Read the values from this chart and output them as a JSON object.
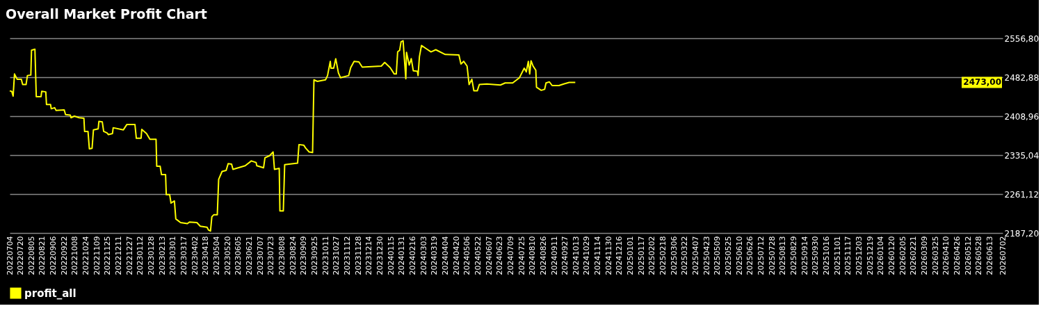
{
  "chart_data": {
    "type": "line",
    "title": "Overall Market Profit Chart",
    "x": [
      "2022-07-04",
      "2022-07-07",
      "2022-07-09",
      "2022-07-11",
      "2022-07-15",
      "2022-07-21",
      "2022-07-23",
      "2022-07-28",
      "2022-07-30",
      "2022-08-04",
      "2022-08-05",
      "2022-08-10",
      "2022-08-12",
      "2022-08-19",
      "2022-08-20",
      "2022-08-26",
      "2022-08-27",
      "2022-09-02",
      "2022-09-03",
      "2022-09-08",
      "2022-09-10",
      "2022-09-22",
      "2022-09-24",
      "2022-10-01",
      "2022-10-02",
      "2022-10-07",
      "2022-10-14",
      "2022-10-21",
      "2022-10-22",
      "2022-10-27",
      "2022-10-29",
      "2022-11-02",
      "2022-11-04",
      "2022-11-11",
      "2022-11-12",
      "2022-11-17",
      "2022-11-19",
      "2022-11-24",
      "2022-11-26",
      "2022-12-02",
      "2022-12-03",
      "2022-12-18",
      "2022-12-23",
      "2023-01-04",
      "2023-01-06",
      "2023-01-13",
      "2023-01-14",
      "2023-01-21",
      "2023-01-26",
      "2023-02-04",
      "2023-02-05",
      "2023-02-10",
      "2023-02-12",
      "2023-02-18",
      "2023-02-19",
      "2023-02-24",
      "2023-02-26",
      "2023-03-03",
      "2023-03-05",
      "2023-03-12",
      "2023-03-22",
      "2023-03-25",
      "2023-04-05",
      "2023-04-10",
      "2023-04-20",
      "2023-04-22",
      "2023-04-25",
      "2023-04-27",
      "2023-04-30",
      "2023-05-05",
      "2023-05-07",
      "2023-05-12",
      "2023-05-18",
      "2023-05-21",
      "2023-05-26",
      "2023-05-28",
      "2023-06-15",
      "2023-06-24",
      "2023-07-01",
      "2023-07-02",
      "2023-07-12",
      "2023-07-14",
      "2023-07-21",
      "2023-07-26",
      "2023-07-28",
      "2023-08-04",
      "2023-08-05",
      "2023-08-10",
      "2023-08-12",
      "2023-08-31",
      "2023-09-02",
      "2023-09-09",
      "2023-09-12",
      "2023-09-17",
      "2023-09-22",
      "2023-09-24",
      "2023-09-29",
      "2023-10-11",
      "2023-10-14",
      "2023-10-18",
      "2023-10-19",
      "2023-10-23",
      "2023-10-26",
      "2023-10-30",
      "2023-11-02",
      "2023-11-14",
      "2023-11-17",
      "2023-11-22",
      "2023-11-29",
      "2023-12-04",
      "2024-01-01",
      "2024-01-06",
      "2024-01-14",
      "2024-01-20",
      "2024-01-23",
      "2024-01-25",
      "2024-01-28",
      "2024-01-30",
      "2024-02-02",
      "2024-02-06",
      "2024-02-07",
      "2024-02-11",
      "2024-02-14",
      "2024-02-17",
      "2024-02-23",
      "2024-02-24",
      "2024-02-26",
      "2024-02-29",
      "2024-03-07",
      "2024-03-14",
      "2024-03-21",
      "2024-04-04",
      "2024-04-24",
      "2024-04-27",
      "2024-05-01",
      "2024-05-06",
      "2024-05-09",
      "2024-05-13",
      "2024-05-16",
      "2024-05-21",
      "2024-05-24",
      "2024-06-04",
      "2024-06-24",
      "2024-07-01",
      "2024-07-12",
      "2024-07-22",
      "2024-07-29",
      "2024-08-01",
      "2024-08-04",
      "2024-08-06",
      "2024-08-08",
      "2024-08-11",
      "2024-08-15",
      "2024-08-16",
      "2024-08-23",
      "2024-08-28",
      "2024-08-30",
      "2024-09-04",
      "2024-09-08",
      "2024-09-18",
      "2024-09-25",
      "2024-10-03",
      "2024-10-12"
    ],
    "series": [
      {
        "name": "profit_all",
        "color": "#ffff00",
        "values": [
          2457,
          2456,
          2447,
          2489,
          2479,
          2479,
          2469,
          2469,
          2486,
          2487,
          2534,
          2536,
          2446,
          2446,
          2456,
          2455,
          2431,
          2431,
          2423,
          2425,
          2420,
          2421,
          2412,
          2411,
          2406,
          2409,
          2406,
          2405,
          2380,
          2380,
          2347,
          2348,
          2383,
          2385,
          2399,
          2398,
          2380,
          2377,
          2374,
          2376,
          2387,
          2383,
          2393,
          2393,
          2367,
          2367,
          2384,
          2376,
          2365,
          2365,
          2314,
          2314,
          2298,
          2298,
          2260,
          2260,
          2244,
          2248,
          2214,
          2207,
          2205,
          2208,
          2207,
          2200,
          2198,
          2193,
          2191,
          2218,
          2222,
          2222,
          2289,
          2304,
          2306,
          2319,
          2318,
          2308,
          2315,
          2324,
          2321,
          2315,
          2311,
          2330,
          2334,
          2341,
          2308,
          2310,
          2229,
          2229,
          2317,
          2320,
          2355,
          2354,
          2348,
          2341,
          2340,
          2478,
          2475,
          2478,
          2486,
          2513,
          2500,
          2500,
          2518,
          2491,
          2482,
          2486,
          2501,
          2513,
          2512,
          2502,
          2504,
          2511,
          2501,
          2489,
          2489,
          2531,
          2534,
          2550,
          2552,
          2480,
          2530,
          2506,
          2518,
          2495,
          2494,
          2486,
          2522,
          2543,
          2537,
          2531,
          2535,
          2526,
          2525,
          2508,
          2513,
          2504,
          2469,
          2479,
          2457,
          2457,
          2469,
          2470,
          2468,
          2472,
          2472,
          2482,
          2500,
          2493,
          2513,
          2489,
          2514,
          2504,
          2496,
          2464,
          2458,
          2460,
          2472,
          2474,
          2467,
          2467,
          2470,
          2473,
          2473
        ]
      }
    ],
    "xlim": [
      "2022-07-04",
      "2026-07-02"
    ],
    "xticks": [
      {
        "value": "2022-07-04",
        "label": "20220704"
      },
      {
        "value": "2022-07-20",
        "label": "20220720"
      },
      {
        "value": "2022-08-05",
        "label": "20220805"
      },
      {
        "value": "2022-08-21",
        "label": "20220821"
      },
      {
        "value": "2022-09-06",
        "label": "20220906"
      },
      {
        "value": "2022-09-22",
        "label": "20220922"
      },
      {
        "value": "2022-10-08",
        "label": "20221008"
      },
      {
        "value": "2022-10-24",
        "label": "20221024"
      },
      {
        "value": "2022-11-09",
        "label": "20221109"
      },
      {
        "value": "2022-11-25",
        "label": "20221125"
      },
      {
        "value": "2022-12-11",
        "label": "20221211"
      },
      {
        "value": "2022-12-27",
        "label": "20221227"
      },
      {
        "value": "2023-01-12",
        "label": "20230112"
      },
      {
        "value": "2023-01-28",
        "label": "20230128"
      },
      {
        "value": "2023-02-13",
        "label": "20230213"
      },
      {
        "value": "2023-03-01",
        "label": "20230301"
      },
      {
        "value": "2023-03-17",
        "label": "20230317"
      },
      {
        "value": "2023-04-02",
        "label": "20230402"
      },
      {
        "value": "2023-04-18",
        "label": "20230418"
      },
      {
        "value": "2023-05-04",
        "label": "20230504"
      },
      {
        "value": "2023-05-20",
        "label": "20230520"
      },
      {
        "value": "2023-06-05",
        "label": "20230605"
      },
      {
        "value": "2023-06-21",
        "label": "20230621"
      },
      {
        "value": "2023-07-07",
        "label": "20230707"
      },
      {
        "value": "2023-07-23",
        "label": "20230723"
      },
      {
        "value": "2023-08-08",
        "label": "20230808"
      },
      {
        "value": "2023-08-24",
        "label": "20230824"
      },
      {
        "value": "2023-09-09",
        "label": "20230909"
      },
      {
        "value": "2023-09-25",
        "label": "20230925"
      },
      {
        "value": "2023-10-11",
        "label": "20231011"
      },
      {
        "value": "2023-10-27",
        "label": "20231027"
      },
      {
        "value": "2023-11-12",
        "label": "20231112"
      },
      {
        "value": "2023-11-28",
        "label": "20231128"
      },
      {
        "value": "2023-12-14",
        "label": "20231214"
      },
      {
        "value": "2023-12-30",
        "label": "20231230"
      },
      {
        "value": "2024-01-15",
        "label": "20240115"
      },
      {
        "value": "2024-01-31",
        "label": "20240131"
      },
      {
        "value": "2024-02-16",
        "label": "20240216"
      },
      {
        "value": "2024-03-03",
        "label": "20240303"
      },
      {
        "value": "2024-03-19",
        "label": "20240319"
      },
      {
        "value": "2024-04-04",
        "label": "20240404"
      },
      {
        "value": "2024-04-20",
        "label": "20240420"
      },
      {
        "value": "2024-05-06",
        "label": "20240506"
      },
      {
        "value": "2024-05-22",
        "label": "20240522"
      },
      {
        "value": "2024-06-07",
        "label": "20240607"
      },
      {
        "value": "2024-06-23",
        "label": "20240623"
      },
      {
        "value": "2024-07-09",
        "label": "20240709"
      },
      {
        "value": "2024-07-25",
        "label": "20240725"
      },
      {
        "value": "2024-08-10",
        "label": "20240810"
      },
      {
        "value": "2024-08-26",
        "label": "20240826"
      },
      {
        "value": "2024-09-11",
        "label": "20240911"
      },
      {
        "value": "2024-09-27",
        "label": "20240927"
      },
      {
        "value": "2024-10-13",
        "label": "20241013"
      },
      {
        "value": "2024-10-29",
        "label": "20241029"
      },
      {
        "value": "2024-11-14",
        "label": "20241114"
      },
      {
        "value": "2024-11-30",
        "label": "20241130"
      },
      {
        "value": "2024-12-16",
        "label": "20241216"
      },
      {
        "value": "2025-01-01",
        "label": "20250101"
      },
      {
        "value": "2025-01-17",
        "label": "20250117"
      },
      {
        "value": "2025-02-02",
        "label": "20250202"
      },
      {
        "value": "2025-02-18",
        "label": "20250218"
      },
      {
        "value": "2025-03-06",
        "label": "20250306"
      },
      {
        "value": "2025-03-22",
        "label": "20250322"
      },
      {
        "value": "2025-04-07",
        "label": "20250407"
      },
      {
        "value": "2025-04-23",
        "label": "20250423"
      },
      {
        "value": "2025-05-09",
        "label": "20250509"
      },
      {
        "value": "2025-05-25",
        "label": "20250525"
      },
      {
        "value": "2025-06-10",
        "label": "20250610"
      },
      {
        "value": "2025-06-26",
        "label": "20250626"
      },
      {
        "value": "2025-07-12",
        "label": "20250712"
      },
      {
        "value": "2025-07-28",
        "label": "20250728"
      },
      {
        "value": "2025-08-13",
        "label": "20250813"
      },
      {
        "value": "2025-08-29",
        "label": "20250829"
      },
      {
        "value": "2025-09-14",
        "label": "20250914"
      },
      {
        "value": "2025-09-30",
        "label": "20250930"
      },
      {
        "value": "2025-10-16",
        "label": "20251016"
      },
      {
        "value": "2025-11-01",
        "label": "20251101"
      },
      {
        "value": "2025-11-17",
        "label": "20251117"
      },
      {
        "value": "2025-12-03",
        "label": "20251203"
      },
      {
        "value": "2025-12-19",
        "label": "20251219"
      },
      {
        "value": "2026-01-04",
        "label": "20260104"
      },
      {
        "value": "2026-01-20",
        "label": "20260120"
      },
      {
        "value": "2026-02-05",
        "label": "20260205"
      },
      {
        "value": "2026-02-21",
        "label": "20260221"
      },
      {
        "value": "2026-03-09",
        "label": "20260309"
      },
      {
        "value": "2026-03-25",
        "label": "20260325"
      },
      {
        "value": "2026-04-10",
        "label": "20260410"
      },
      {
        "value": "2026-04-26",
        "label": "20260426"
      },
      {
        "value": "2026-05-12",
        "label": "20260512"
      },
      {
        "value": "2026-05-28",
        "label": "20260528"
      },
      {
        "value": "2026-06-13",
        "label": "20260613"
      },
      {
        "value": "2026-07-02",
        "label": "20260702"
      }
    ],
    "ylim": [
      2187.2,
      2556.8
    ],
    "yticks": [
      {
        "value": 2187.2,
        "label": "2187,20"
      },
      {
        "value": 2261.12,
        "label": "2261,12"
      },
      {
        "value": 2335.04,
        "label": "2335,04"
      },
      {
        "value": 2408.96,
        "label": "2408,96"
      },
      {
        "value": 2482.88,
        "label": "2482,88"
      },
      {
        "value": 2556.8,
        "label": "2556,80"
      }
    ],
    "annotations": [
      "2473,00"
    ],
    "grid": "y",
    "legend": "bottom"
  }
}
